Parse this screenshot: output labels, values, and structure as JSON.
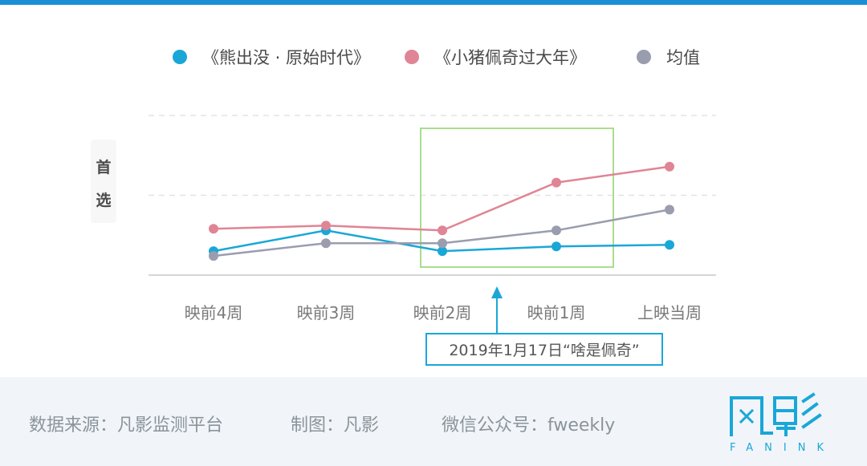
{
  "chart_data": {
    "type": "line",
    "categories": [
      "映前4周",
      "映前3周",
      "映前2周",
      "映前1周",
      "上映当周"
    ],
    "series": [
      {
        "name": "《熊出没 · 原始时代》",
        "color": "#1aa7d8",
        "values": [
          1.5,
          2.8,
          1.5,
          1.8,
          1.9
        ]
      },
      {
        "name": "《小猪佩奇过大年》",
        "color": "#e08595",
        "values": [
          2.9,
          3.1,
          2.8,
          5.8,
          6.8
        ]
      },
      {
        "name": "均值",
        "color": "#9a9dae",
        "values": [
          1.2,
          2.0,
          2.0,
          2.8,
          4.1
        ]
      }
    ],
    "ylabel": "首选",
    "ylim": [
      0,
      10
    ],
    "grid": true,
    "legend": "top",
    "highlight": {
      "from": "映前2周",
      "to": "映前1周"
    },
    "annotation": "2019年1月17日“啥是佩奇”"
  },
  "footer": {
    "source": "数据来源：凡影监测平台",
    "made_by": "制图：凡影",
    "wechat": "微信公众号：fweekly"
  },
  "logo": {
    "brand": "凡影",
    "sub": "FANINK"
  },
  "colors": {
    "accent": "#1a8fd6",
    "highlight_box": "#a9de8d",
    "annotation_box": "#1aa7d8"
  }
}
